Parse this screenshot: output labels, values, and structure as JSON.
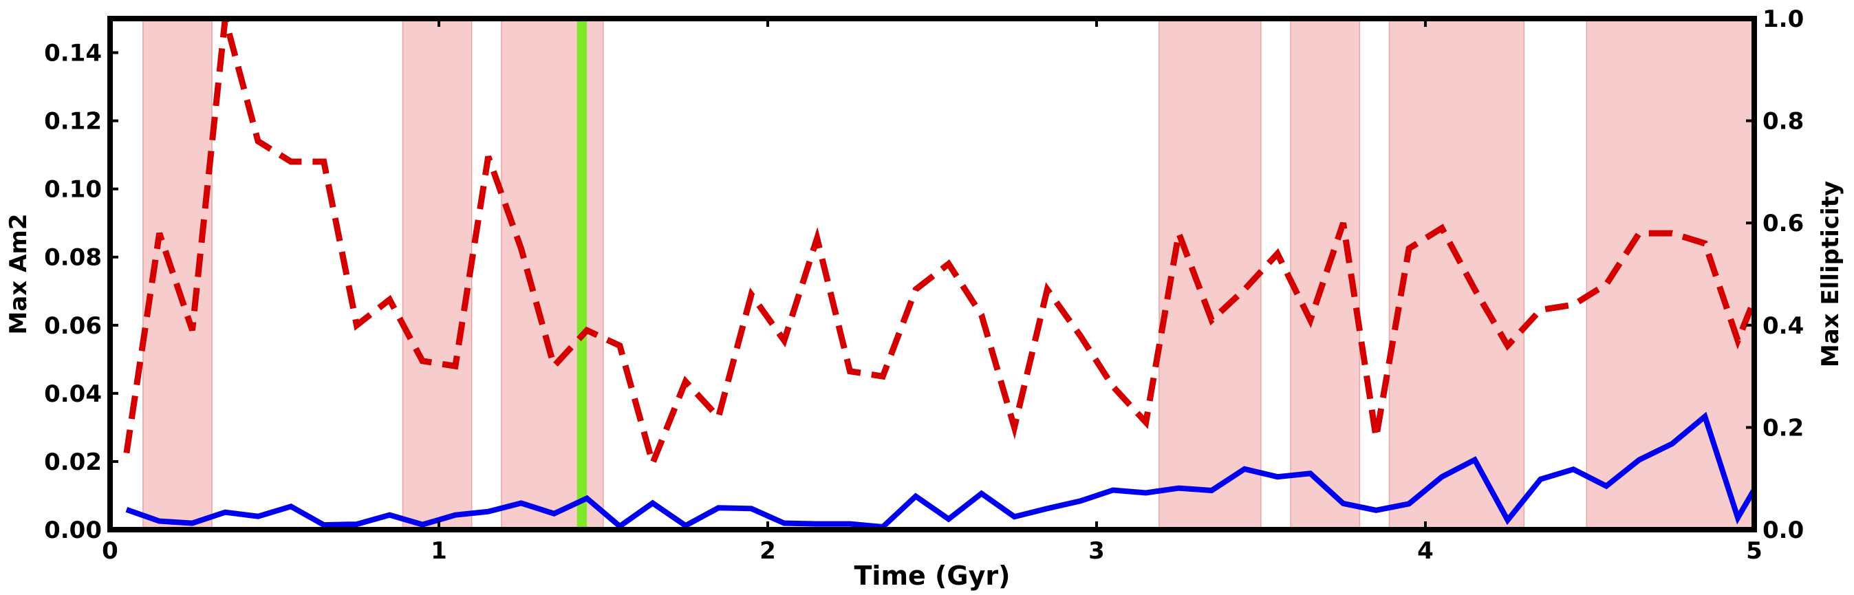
{
  "chart_data": {
    "type": "line",
    "xlabel": "Time (Gyr)",
    "ylabel_left": "Max Am2",
    "ylabel_right": "Max Ellipticity",
    "xlim": [
      0,
      5
    ],
    "ylim_left": [
      0,
      0.15
    ],
    "ylim_right": [
      0,
      1.0
    ],
    "xticks": [
      0,
      1,
      2,
      3,
      4,
      5
    ],
    "xtick_labels": [
      "0",
      "1",
      "2",
      "3",
      "4",
      "5"
    ],
    "yticks_left": [
      0,
      0.02,
      0.04,
      0.06,
      0.08,
      0.1,
      0.12,
      0.14
    ],
    "ytick_labels_left": [
      "0.00",
      "0.02",
      "0.04",
      "0.06",
      "0.08",
      "0.10",
      "0.12",
      "0.14"
    ],
    "yticks_right": [
      0,
      0.2,
      0.4,
      0.6,
      0.8,
      1.0
    ],
    "ytick_labels_right": [
      "0.0",
      "0.2",
      "0.4",
      "0.6",
      "0.8",
      "1.0"
    ],
    "grid": false,
    "colors": {
      "solid_series": "#0000ee",
      "dashed_series": "#d40000",
      "shaded_region": "#ef9a9a",
      "marker_band": "#7fe62a"
    },
    "shaded_regions": [
      [
        0.1,
        0.31
      ],
      [
        0.89,
        1.1
      ],
      [
        1.19,
        1.5
      ],
      [
        3.19,
        3.5
      ],
      [
        3.59,
        3.8
      ],
      [
        3.89,
        4.3
      ],
      [
        4.49,
        5.0
      ]
    ],
    "marker_band": [
      1.42,
      1.45
    ],
    "series": [
      {
        "axis": "left",
        "style": "solid",
        "x": [
          0.05,
          0.15,
          0.25,
          0.35,
          0.45,
          0.55,
          0.65,
          0.75,
          0.85,
          0.95,
          1.05,
          1.15,
          1.25,
          1.35,
          1.45,
          1.55,
          1.65,
          1.75,
          1.85,
          1.95,
          2.05,
          2.15,
          2.25,
          2.35,
          2.45,
          2.55,
          2.65,
          2.75,
          2.85,
          2.95,
          3.05,
          3.15,
          3.25,
          3.35,
          3.45,
          3.55,
          3.65,
          3.75,
          3.85,
          3.95,
          4.05,
          4.15,
          4.25,
          4.35,
          4.45,
          4.55,
          4.65,
          4.75,
          4.85,
          4.95,
          5.0
        ],
        "values": [
          0.0059,
          0.0025,
          0.0019,
          0.0051,
          0.0039,
          0.0068,
          0.0014,
          0.0016,
          0.0043,
          0.0015,
          0.0043,
          0.0053,
          0.0078,
          0.0047,
          0.0092,
          0.001,
          0.0078,
          0.0012,
          0.0064,
          0.0062,
          0.0019,
          0.0017,
          0.0017,
          0.0008,
          0.0098,
          0.0031,
          0.0106,
          0.0038,
          0.0062,
          0.0084,
          0.0116,
          0.0108,
          0.0122,
          0.0115,
          0.0178,
          0.0155,
          0.0165,
          0.0077,
          0.0057,
          0.0076,
          0.0155,
          0.0205,
          0.0028,
          0.0148,
          0.0177,
          0.0128,
          0.0205,
          0.0252,
          0.0332,
          0.0035,
          0.0118
        ]
      },
      {
        "axis": "right",
        "style": "dashed",
        "x": [
          0.05,
          0.15,
          0.25,
          0.35,
          0.45,
          0.55,
          0.65,
          0.75,
          0.85,
          0.95,
          1.05,
          1.15,
          1.25,
          1.35,
          1.45,
          1.55,
          1.65,
          1.75,
          1.85,
          1.95,
          2.05,
          2.15,
          2.25,
          2.35,
          2.45,
          2.55,
          2.65,
          2.75,
          2.85,
          2.95,
          3.05,
          3.15,
          3.25,
          3.35,
          3.45,
          3.55,
          3.65,
          3.75,
          3.85,
          3.95,
          4.05,
          4.15,
          4.25,
          4.35,
          4.45,
          4.55,
          4.65,
          4.75,
          4.85,
          4.95,
          5.0
        ],
        "values": [
          0.15,
          0.58,
          0.39,
          1.0,
          0.76,
          0.72,
          0.72,
          0.4,
          0.45,
          0.33,
          0.32,
          0.73,
          0.55,
          0.32,
          0.39,
          0.36,
          0.13,
          0.29,
          0.22,
          0.46,
          0.37,
          0.57,
          0.31,
          0.3,
          0.47,
          0.52,
          0.42,
          0.2,
          0.47,
          0.38,
          0.28,
          0.21,
          0.58,
          0.41,
          0.47,
          0.54,
          0.41,
          0.6,
          0.18,
          0.55,
          0.59,
          0.47,
          0.36,
          0.43,
          0.44,
          0.48,
          0.58,
          0.58,
          0.56,
          0.37,
          0.45
        ]
      }
    ]
  }
}
